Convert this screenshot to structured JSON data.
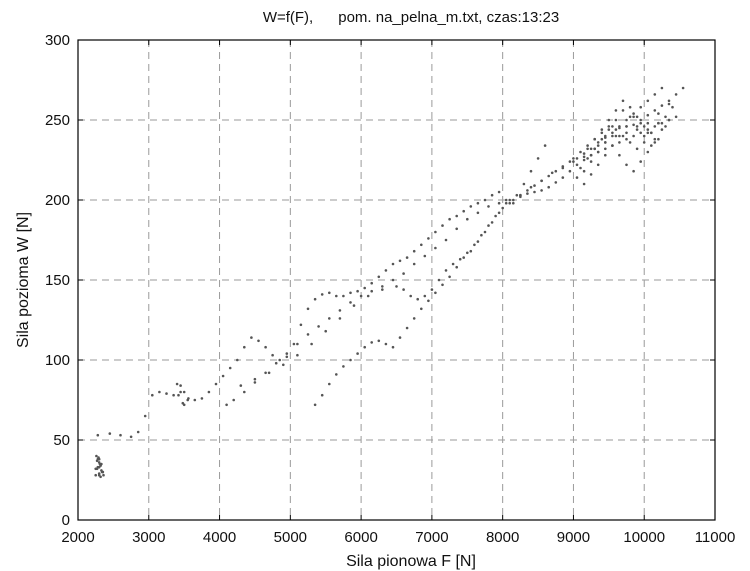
{
  "chart_data": {
    "type": "scatter",
    "title": "W=f(F),      pom. na_pelna_m.txt, czas:13:23",
    "xlabel": "Sila pionowa F [N]",
    "ylabel": "Sila pozioma W [N]",
    "xlim": [
      2000,
      11000
    ],
    "ylim": [
      0,
      300
    ],
    "xticks": [
      "2000",
      "3000",
      "4000",
      "5000",
      "6000",
      "7000",
      "8000",
      "9000",
      "10000",
      "11000"
    ],
    "yticks": [
      "0",
      "50",
      "100",
      "150",
      "200",
      "250",
      "300"
    ],
    "grid": true,
    "marker_color": "#555555",
    "series": [
      {
        "x": [
          2250,
          2270,
          2300,
          2330,
          2350,
          2320,
          2280,
          2260,
          2300,
          2340,
          2360,
          2320,
          2290,
          2270,
          2250,
          2300,
          2330,
          2310,
          2280,
          2300,
          2350,
          2300,
          2280,
          2450,
          2600,
          2750,
          2850,
          2950,
          3050,
          3150,
          3250,
          3350,
          3400,
          3450,
          3500,
          3550,
          3500,
          3450,
          3420,
          3480,
          3560,
          3650,
          3750,
          3850,
          3950,
          4050,
          4150,
          4250,
          4350,
          4450,
          4550,
          4650,
          4750,
          4850,
          4950,
          5050,
          5150,
          5250,
          5350,
          5450,
          5550,
          5650,
          5750,
          5850,
          5950,
          6050,
          6150,
          6250,
          6350,
          6450,
          6550,
          6650,
          6750,
          6850,
          6950,
          7050,
          7150,
          7250,
          7350,
          7450,
          7550,
          7650,
          7750,
          7850,
          7950,
          8050,
          8150,
          8250,
          8350,
          8450,
          8550,
          8650,
          8750,
          8850,
          8950,
          9050,
          9150,
          9250,
          9350,
          9450,
          9550,
          9650,
          9750,
          9850,
          9950,
          10050,
          10150,
          10250,
          10350,
          10450,
          10550
        ],
        "y": [
          28,
          32,
          38,
          35,
          30,
          27,
          33,
          40,
          36,
          30,
          28,
          34,
          39,
          37,
          32,
          29,
          31,
          35,
          38,
          33,
          30,
          28,
          53,
          54,
          53,
          52,
          55,
          65,
          78,
          80,
          79,
          78,
          85,
          80,
          72,
          75,
          80,
          84,
          78,
          73,
          76,
          75,
          76,
          80,
          85,
          90,
          95,
          100,
          108,
          114,
          112,
          108,
          103,
          100,
          102,
          110,
          122,
          132,
          138,
          141,
          142,
          140,
          140,
          142,
          143,
          145,
          148,
          152,
          156,
          160,
          162,
          164,
          168,
          172,
          176,
          180,
          184,
          188,
          190,
          193,
          196,
          198,
          200,
          203,
          205,
          200,
          198,
          203,
          206,
          209,
          212,
          215,
          218,
          221,
          224,
          226,
          229,
          232,
          236,
          239,
          242,
          245,
          246,
          247,
          250,
          253,
          256,
          259,
          262,
          266,
          270
        ]
      },
      {
        "x": [
          4100,
          4200,
          4350,
          4500,
          4650,
          4800,
          4950,
          5100,
          5250,
          5400,
          5550,
          5700,
          5850,
          6000,
          6150,
          6300,
          6450,
          6600,
          6750,
          6900,
          7050,
          7200,
          7350,
          7500,
          7650,
          7800,
          7950,
          8100,
          8250,
          8400,
          8550,
          8700,
          8850,
          9000,
          9150,
          9300,
          9450,
          9600,
          9750,
          9900,
          10050,
          10200,
          10350
        ],
        "y": [
          72,
          75,
          80,
          86,
          92,
          98,
          104,
          110,
          116,
          121,
          126,
          131,
          136,
          140,
          143,
          146,
          150,
          154,
          160,
          165,
          170,
          175,
          182,
          188,
          192,
          196,
          198,
          200,
          203,
          208,
          212,
          217,
          220,
          224,
          227,
          232,
          236,
          240,
          242,
          244,
          248,
          254,
          260
        ]
      },
      {
        "x": [
          5350,
          5450,
          5550,
          5650,
          5750,
          5850,
          5950,
          6050,
          6150,
          6250,
          6350,
          6450,
          6550,
          6650,
          6750,
          6850,
          6950,
          7050,
          7150,
          7250,
          7350,
          7450,
          7550,
          7650,
          7750,
          7850,
          7950,
          8050,
          8150,
          8250,
          8350,
          8450,
          8550,
          8650,
          8750,
          8850,
          8950,
          9050,
          9150,
          9250,
          9350,
          9450,
          9550,
          9650,
          9750,
          9850,
          9950,
          10050,
          10150,
          10250,
          10350,
          10450
        ],
        "y": [
          72,
          78,
          85,
          91,
          96,
          100,
          104,
          108,
          111,
          112,
          110,
          108,
          114,
          120,
          126,
          132,
          137,
          142,
          147,
          152,
          158,
          164,
          168,
          174,
          180,
          186,
          192,
          198,
          200,
          202,
          204,
          205,
          206,
          208,
          211,
          214,
          218,
          222,
          225,
          228,
          230,
          232,
          234,
          236,
          238,
          240,
          242,
          244,
          246,
          248,
          250,
          252
        ]
      },
      {
        "x": [
          4300,
          4500,
          4700,
          4900,
          5100,
          5300,
          5500,
          5700,
          5900,
          6100,
          6300,
          6500,
          6600,
          6700,
          6800,
          6900,
          7000,
          7100,
          7200,
          7300,
          7400,
          7500,
          7600,
          7700,
          7800,
          7900,
          8000,
          8100,
          8200,
          8300,
          8400,
          8500,
          8600
        ],
        "y": [
          84,
          88,
          92,
          97,
          103,
          110,
          118,
          126,
          134,
          140,
          144,
          146,
          144,
          140,
          138,
          140,
          144,
          150,
          156,
          160,
          163,
          167,
          172,
          178,
          184,
          190,
          195,
          198,
          203,
          210,
          218,
          226,
          234
        ]
      },
      {
        "x": [
          9000,
          9100,
          9200,
          9300,
          9400,
          9500,
          9600,
          9700,
          9800,
          9900,
          10000,
          10100,
          10200,
          10300,
          10400,
          9050,
          9150,
          9250,
          9350,
          9450,
          9550,
          9650,
          9750,
          9850,
          9950,
          10050,
          10150,
          10250,
          10350,
          9100,
          9200,
          9300,
          9400,
          9500,
          9600,
          9700,
          9800,
          9900,
          10000,
          10100,
          10200,
          10300,
          9150,
          9250,
          9350,
          9450,
          9550,
          9650,
          9750,
          9850,
          9950,
          10050,
          10150,
          10250,
          9200,
          9300,
          9400,
          9500,
          9600,
          9700,
          9800,
          9900,
          10000,
          10100,
          10200,
          9250,
          9350,
          9450,
          9550,
          9650,
          9750,
          9850,
          9950,
          10050,
          10150
        ],
        "y": [
          226,
          230,
          234,
          238,
          242,
          246,
          244,
          240,
          236,
          232,
          236,
          242,
          248,
          252,
          258,
          214,
          218,
          224,
          230,
          236,
          240,
          246,
          250,
          254,
          248,
          242,
          238,
          244,
          250,
          220,
          226,
          232,
          238,
          244,
          250,
          256,
          252,
          246,
          240,
          234,
          238,
          246,
          210,
          216,
          222,
          228,
          234,
          240,
          246,
          252,
          258,
          262,
          266,
          270,
          232,
          238,
          244,
          250,
          256,
          262,
          258,
          252,
          246,
          242,
          248,
          228,
          234,
          240,
          246,
          228,
          222,
          218,
          224,
          230,
          236
        ]
      }
    ]
  }
}
